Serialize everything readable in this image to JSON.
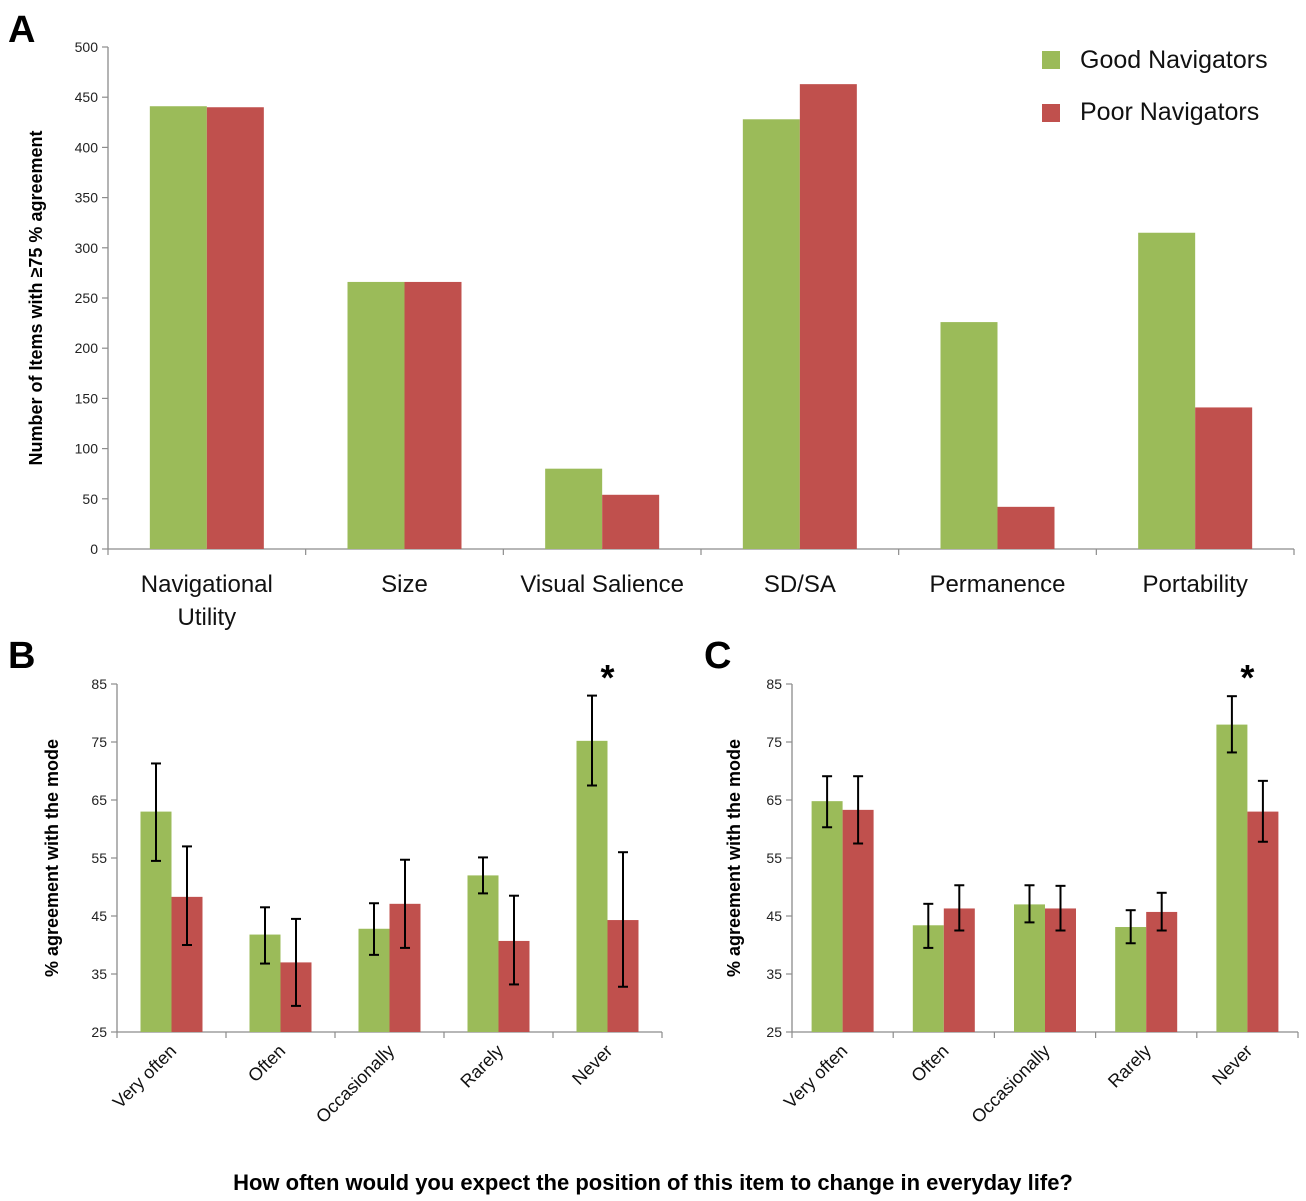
{
  "colors": {
    "good": "#9bbb59",
    "poor": "#c0504d",
    "axis": "#8c8c8c",
    "error": "#000000"
  },
  "legend": {
    "good": "Good Navigators",
    "poor": "Poor Navigators",
    "placement": "top-right"
  },
  "shared_xlabel": "How often would you expect the position of this item to change in everyday life?",
  "chart_data": [
    {
      "panel": "A",
      "type": "bar",
      "ylabel": "Number of Items with ≥75 % agreement",
      "ylim": [
        0,
        500
      ],
      "yticks": [
        0,
        50,
        100,
        150,
        200,
        250,
        300,
        350,
        400,
        450,
        500
      ],
      "categories": [
        [
          "Navigational",
          "Utility"
        ],
        [
          "Size"
        ],
        [
          "Visual Salience"
        ],
        [
          "SD/SA"
        ],
        [
          "Permanence"
        ],
        [
          "Portability"
        ]
      ],
      "series": [
        {
          "name": "Good Navigators",
          "values": [
            441,
            266,
            80,
            428,
            226,
            315
          ]
        },
        {
          "name": "Poor Navigators",
          "values": [
            440,
            266,
            54,
            463,
            42,
            141
          ]
        }
      ]
    },
    {
      "panel": "B",
      "type": "bar",
      "ylabel": "% agreement with the mode",
      "ylim": [
        25,
        85
      ],
      "yticks": [
        25,
        35,
        45,
        55,
        65,
        75,
        85
      ],
      "categories": [
        "Very often",
        "Often",
        "Occasionally",
        "Rarely",
        "Never"
      ],
      "series": [
        {
          "name": "Good Navigators",
          "values": [
            63,
            41.8,
            42.8,
            52,
            75.2
          ],
          "err_low": [
            54.5,
            36.8,
            38.3,
            48.9,
            67.5
          ],
          "err_high": [
            71.3,
            46.5,
            47.2,
            55.1,
            83
          ]
        },
        {
          "name": "Poor Navigators",
          "values": [
            48.3,
            37,
            47.1,
            40.7,
            44.3
          ],
          "err_low": [
            40,
            29.5,
            39.5,
            33.2,
            32.8
          ],
          "err_high": [
            57,
            44.5,
            54.7,
            48.5,
            56
          ]
        }
      ],
      "annotation": {
        "text": "*",
        "category": "Never"
      }
    },
    {
      "panel": "C",
      "type": "bar",
      "ylabel": "% agreement with the mode",
      "ylim": [
        25,
        85
      ],
      "yticks": [
        25,
        35,
        45,
        55,
        65,
        75,
        85
      ],
      "categories": [
        "Very often",
        "Often",
        "Occasionally",
        "Rarely",
        "Never"
      ],
      "series": [
        {
          "name": "Good Navigators",
          "values": [
            64.8,
            43.4,
            47,
            43.1,
            78
          ],
          "err_low": [
            60.3,
            39.5,
            43.9,
            40.3,
            73.2
          ],
          "err_high": [
            69.1,
            47.1,
            50.3,
            46,
            82.9
          ]
        },
        {
          "name": "Poor Navigators",
          "values": [
            63.3,
            46.3,
            46.3,
            45.7,
            63
          ],
          "err_low": [
            57.5,
            42.5,
            42.5,
            42.5,
            57.8
          ],
          "err_high": [
            69.1,
            50.3,
            50.2,
            49,
            68.3
          ]
        }
      ],
      "annotation": {
        "text": "*",
        "category": "Never"
      }
    }
  ]
}
